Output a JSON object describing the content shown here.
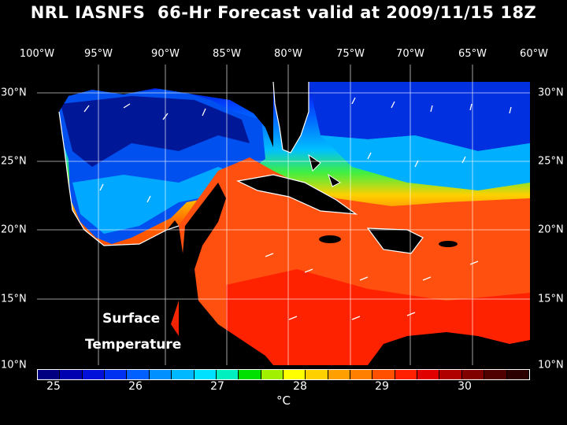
{
  "title": "NRL IASNFS  66-Hr Forecast valid at 2009/11/15 18Z",
  "lon_labels": [
    "100°W",
    "95°W",
    "90°W",
    "85°W",
    "80°W",
    "75°W",
    "70°W",
    "65°W",
    "60°W"
  ],
  "lat_labels": [
    "30°N",
    "25°N",
    "20°N",
    "15°N",
    "10°N"
  ],
  "overlay": {
    "line1": "Surface",
    "line2": "Temperature"
  },
  "colorbar": {
    "tick_labels": [
      "25",
      "26",
      "27",
      "28",
      "29",
      "30"
    ],
    "unit": "°C",
    "colors": [
      "#000080",
      "#0000b0",
      "#0010d8",
      "#0030f0",
      "#0060ff",
      "#0090ff",
      "#00b8ff",
      "#00e0ff",
      "#00f0c0",
      "#00e000",
      "#a0f000",
      "#ffff00",
      "#ffd000",
      "#ffa000",
      "#ff8000",
      "#ff5000",
      "#ff2000",
      "#e00000",
      "#b00000",
      "#800000",
      "#500000",
      "#2a0000"
    ]
  }
}
